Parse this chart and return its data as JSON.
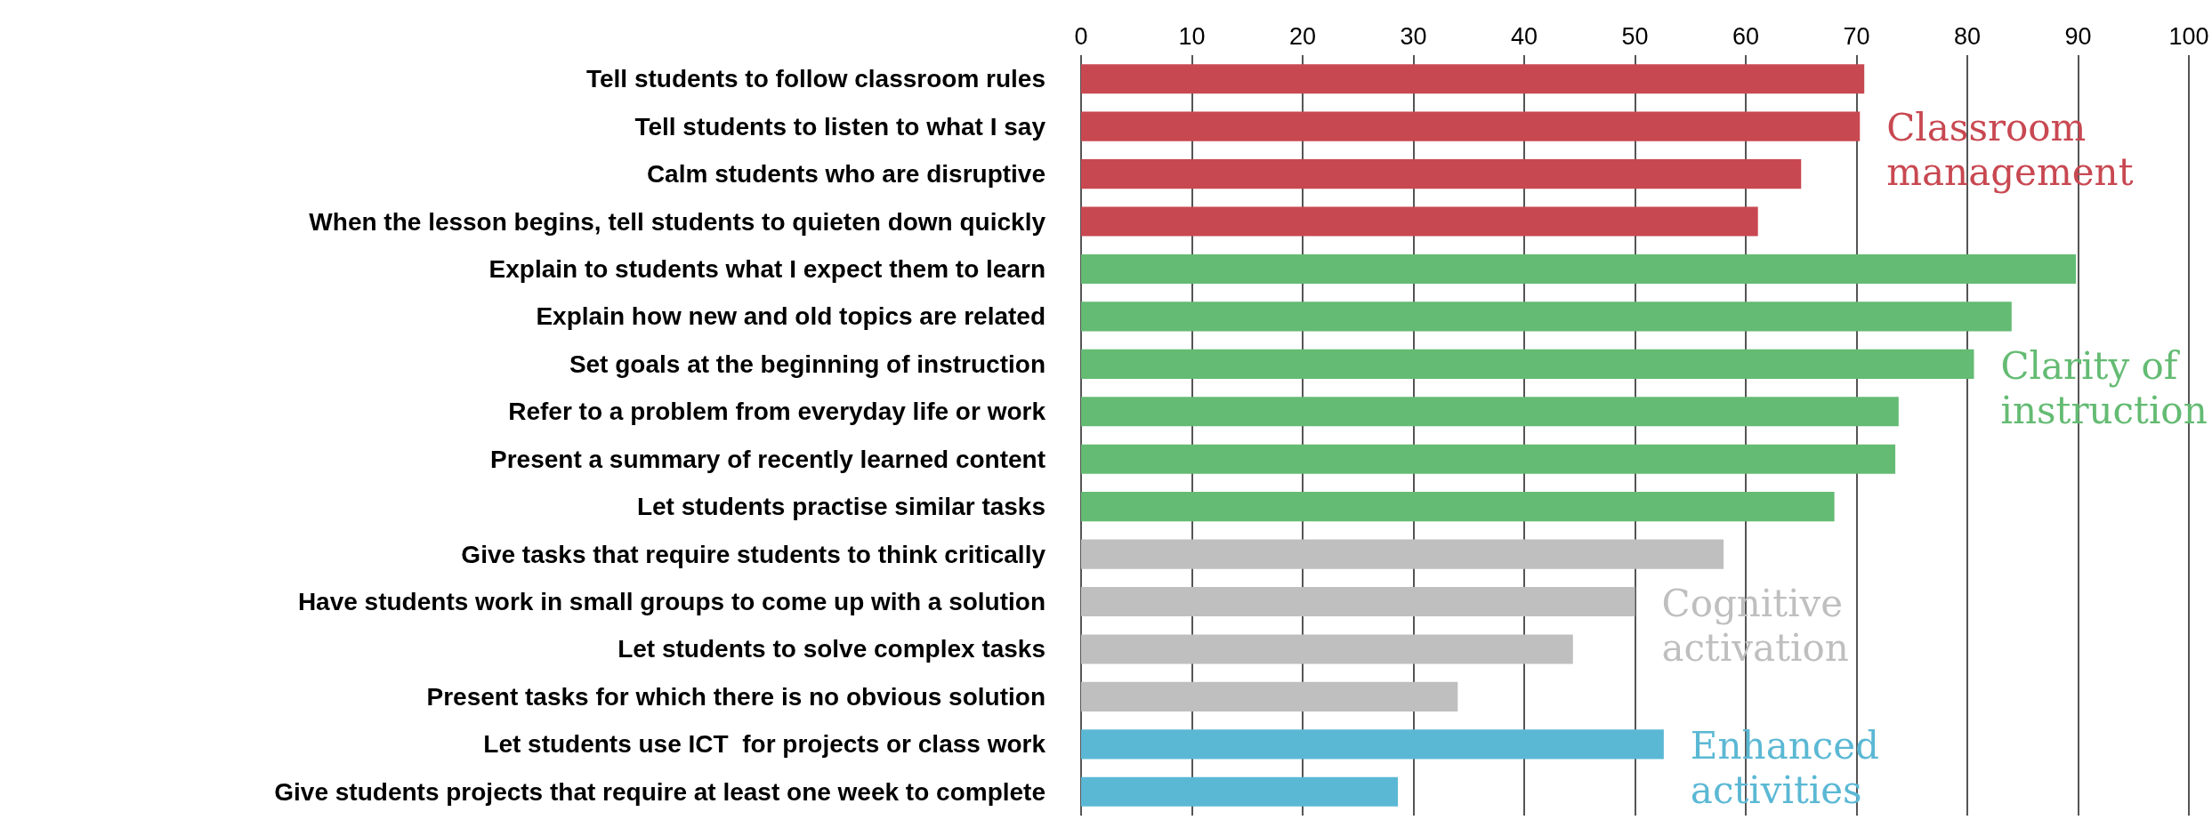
{
  "chart_data": {
    "type": "bar",
    "orientation": "horizontal",
    "categories": [
      "Tell students to follow classroom rules",
      "Tell students to listen to what I say",
      "Calm students who are disruptive",
      "When the lesson begins, tell students to quieten down quickly",
      "Explain to students what I expect them to learn",
      "Explain how new and old topics are related",
      "Set goals at the beginning of instruction",
      "Refer to a problem from everyday life or work",
      "Present a summary of recently learned content",
      "Let students practise similar tasks",
      "Give tasks that require students to think critically",
      "Have students work in small groups to come up with a solution",
      "Let students to solve complex tasks",
      "Present tasks for which there is no obvious solution",
      "Let students use ICT  for projects or class work",
      "Give students projects that require at least one week to complete"
    ],
    "series": [
      {
        "name": "Classroom management",
        "color": "#c84851",
        "values": [
          70.7,
          70.3,
          65.0,
          61.1,
          null,
          null,
          null,
          null,
          null,
          null,
          null,
          null,
          null,
          null,
          null,
          null
        ]
      },
      {
        "name": "Clarity of instruction",
        "color": "#64bb73",
        "values": [
          null,
          null,
          null,
          null,
          89.8,
          84.0,
          80.6,
          73.8,
          73.5,
          68.0,
          null,
          null,
          null,
          null,
          null,
          null
        ]
      },
      {
        "name": "Cognitive activation",
        "color": "#bfbfbf",
        "values": [
          null,
          null,
          null,
          null,
          null,
          null,
          null,
          null,
          null,
          null,
          58.0,
          50.0,
          44.4,
          34.0,
          null,
          null
        ]
      },
      {
        "name": "Enhanced activities",
        "color": "#5bb8d4",
        "values": [
          null,
          null,
          null,
          null,
          null,
          null,
          null,
          null,
          null,
          null,
          null,
          null,
          null,
          null,
          52.6,
          28.6
        ]
      }
    ],
    "xlim": [
      0,
      100
    ],
    "xticks": [
      0,
      10,
      20,
      30,
      40,
      50,
      60,
      70,
      80,
      90,
      100
    ],
    "grid": "x"
  }
}
